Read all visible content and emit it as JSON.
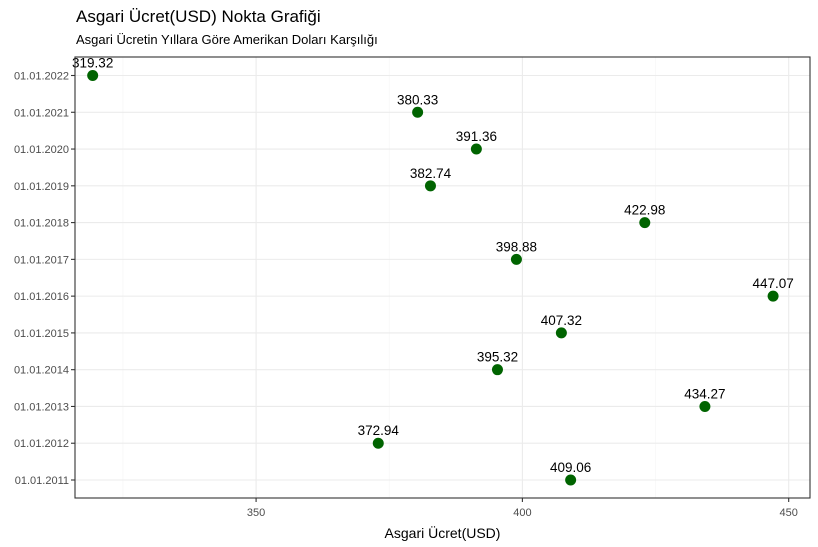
{
  "chart_data": {
    "type": "scatter",
    "title": "Asgari Ücret(USD) Nokta Grafiği",
    "subtitle": "Asgari Ücretin Yıllara Göre Amerikan Doları Karşılığı",
    "xlabel": "Asgari Ücret(USD)",
    "ylabel": "",
    "xlim": [
      316,
      454
    ],
    "x_ticks": [
      350,
      400,
      450
    ],
    "y_categories": [
      "01.01.2011",
      "01.01.2012",
      "01.01.2013",
      "01.01.2014",
      "01.01.2015",
      "01.01.2016",
      "01.01.2017",
      "01.01.2018",
      "01.01.2019",
      "01.01.2020",
      "01.01.2021",
      "01.01.2022"
    ],
    "points": [
      {
        "date": "01.01.2011",
        "value": 409.06,
        "label": "409.06"
      },
      {
        "date": "01.01.2012",
        "value": 372.94,
        "label": "372.94"
      },
      {
        "date": "01.01.2013",
        "value": 434.27,
        "label": "434.27"
      },
      {
        "date": "01.01.2014",
        "value": 395.32,
        "label": "395.32"
      },
      {
        "date": "01.01.2015",
        "value": 407.32,
        "label": "407.32"
      },
      {
        "date": "01.01.2016",
        "value": 447.07,
        "label": "447.07"
      },
      {
        "date": "01.01.2017",
        "value": 398.88,
        "label": "398.88"
      },
      {
        "date": "01.01.2018",
        "value": 422.98,
        "label": "422.98"
      },
      {
        "date": "01.01.2019",
        "value": 382.74,
        "label": "382.74"
      },
      {
        "date": "01.01.2020",
        "value": 391.36,
        "label": "391.36"
      },
      {
        "date": "01.01.2021",
        "value": 380.33,
        "label": "380.33"
      },
      {
        "date": "01.01.2022",
        "value": 319.32,
        "label": "319.32"
      }
    ],
    "grid": true,
    "legend": "none",
    "colors": {
      "point": "#006400",
      "grid_major": "#ebebeb",
      "grid_minor": "#f5f5f5",
      "panel_border": "#333333",
      "tick_text": "#4d4d4d"
    }
  }
}
